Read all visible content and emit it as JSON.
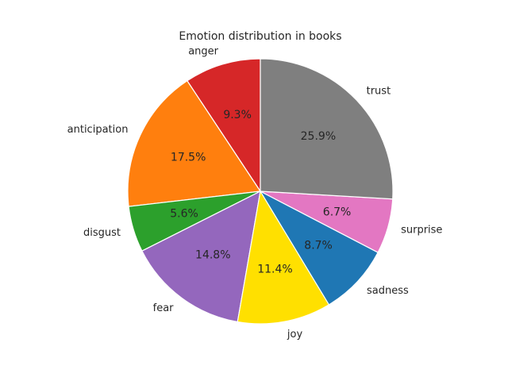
{
  "chart_data": {
    "type": "pie",
    "title": "Emotion distribution in books",
    "start_angle_deg": 90,
    "direction": "counterclockwise",
    "slices": [
      {
        "label": "anger",
        "pct_label": "9.3%",
        "value": 9.3,
        "color": "#d62728"
      },
      {
        "label": "anticipation",
        "pct_label": "17.5%",
        "value": 17.5,
        "color": "#ff7f0e"
      },
      {
        "label": "disgust",
        "pct_label": "5.6%",
        "value": 5.6,
        "color": "#2ca02c"
      },
      {
        "label": "fear",
        "pct_label": "14.8%",
        "value": 14.8,
        "color": "#9467bd"
      },
      {
        "label": "joy",
        "pct_label": "11.4%",
        "value": 11.4,
        "color": "#ffe000"
      },
      {
        "label": "sadness",
        "pct_label": "8.7%",
        "value": 8.7,
        "color": "#1f77b4"
      },
      {
        "label": "surprise",
        "pct_label": "6.7%",
        "value": 6.7,
        "color": "#e377c2"
      },
      {
        "label": "trust",
        "pct_label": "25.9%",
        "value": 25.9,
        "color": "#7f7f7f"
      }
    ]
  }
}
